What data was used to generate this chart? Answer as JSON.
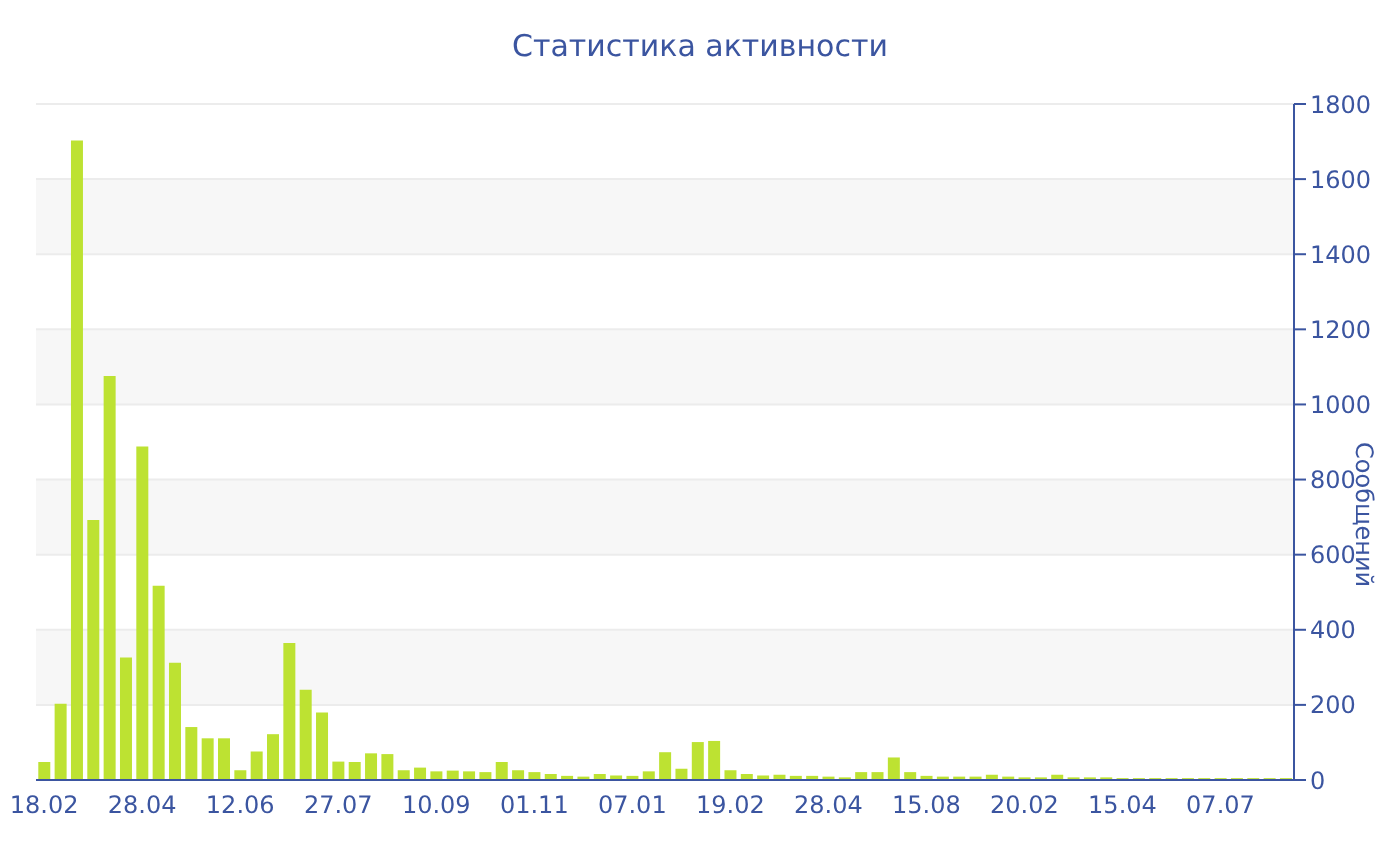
{
  "chart_data": {
    "type": "bar",
    "title": "Статистика активности",
    "ylabel": "Сообщений",
    "categories": [
      "18.02",
      null,
      null,
      null,
      null,
      null,
      "28.04",
      null,
      null,
      null,
      null,
      null,
      "12.06",
      null,
      null,
      null,
      null,
      null,
      "27.07",
      null,
      null,
      null,
      null,
      null,
      "10.09",
      null,
      null,
      null,
      null,
      null,
      "01.11",
      null,
      null,
      null,
      null,
      null,
      "07.01",
      null,
      null,
      null,
      null,
      null,
      "19.02",
      null,
      null,
      null,
      null,
      null,
      "28.04",
      null,
      null,
      null,
      null,
      null,
      "15.08",
      null,
      null,
      null,
      null,
      null,
      "20.02",
      null,
      null,
      null,
      null,
      null,
      "15.04",
      null,
      null,
      null,
      null,
      null,
      "07.07",
      null,
      null,
      null,
      null
    ],
    "values": [
      48,
      203,
      1703,
      692,
      1076,
      326,
      888,
      517,
      312,
      141,
      111,
      111,
      26,
      76,
      122,
      365,
      240,
      180,
      49,
      48,
      71,
      69,
      26,
      33,
      23,
      25,
      23,
      21,
      48,
      26,
      21,
      16,
      11,
      9,
      16,
      12,
      11,
      23,
      74,
      30,
      101,
      104,
      26,
      16,
      12,
      14,
      11,
      11,
      9,
      7,
      21,
      21,
      60,
      21,
      11,
      9,
      9,
      9,
      14,
      9,
      7,
      7,
      14,
      7,
      7,
      7,
      5,
      5,
      5,
      5,
      5,
      5,
      5,
      5,
      5,
      5,
      5
    ],
    "color": "#bde232",
    "ylim": [
      0,
      1800
    ],
    "yticks": [
      0,
      200,
      400,
      600,
      800,
      1000,
      1200,
      1400,
      1600,
      1800
    ],
    "grid": "y",
    "legend": false
  }
}
